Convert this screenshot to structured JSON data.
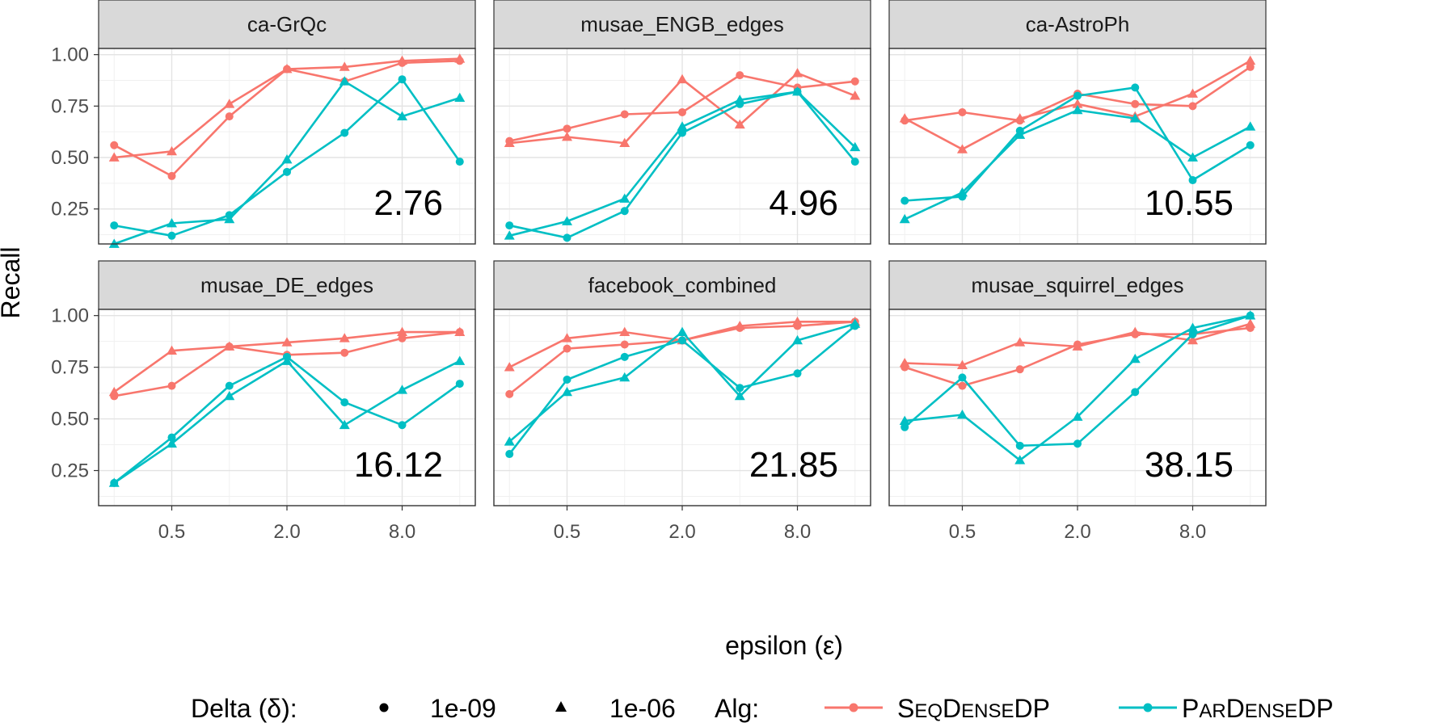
{
  "chart_data": {
    "type": "line",
    "xlabel": "epsilon (ε)",
    "ylabel": "Recall",
    "x": [
      0.25,
      0.5,
      1.0,
      2.0,
      4.0,
      8.0,
      16.0
    ],
    "x_scale": "log2",
    "xticks": [
      0.5,
      2.0,
      8.0
    ],
    "xtick_labels": [
      "0.5",
      "2.0",
      "8.0"
    ],
    "ylim": [
      0.08,
      1.03
    ],
    "yticks": [
      0.25,
      0.5,
      0.75,
      1.0
    ],
    "ytick_labels": [
      "0.25",
      "0.50",
      "0.75",
      "1.00"
    ],
    "grid": true,
    "legend": {
      "position": "bottom",
      "delta_title": "Delta (δ):",
      "delta_items": [
        {
          "label": "1e-09",
          "shape": "circle"
        },
        {
          "label": "1e-06",
          "shape": "triangle"
        }
      ],
      "alg_title": "Alg:",
      "alg_items": [
        {
          "cap1": "S",
          "small1": "EQ",
          "cap2": "D",
          "small2": "ENSE",
          "tail": "DP",
          "color": "#F8766D"
        },
        {
          "cap1": "P",
          "small1": "AR",
          "cap2": "D",
          "small2": "ENSE",
          "tail": "DP",
          "color": "#00BFC4"
        }
      ]
    },
    "colors": {
      "seq": "#F8766D",
      "par": "#00BFC4"
    },
    "panels": [
      {
        "title": "ca-GrQc",
        "annotation": "2.76",
        "series": [
          {
            "alg": "seq",
            "delta": "1e-09",
            "values": [
              0.56,
              0.41,
              0.7,
              0.93,
              0.87,
              0.96,
              0.97
            ]
          },
          {
            "alg": "seq",
            "delta": "1e-06",
            "values": [
              0.5,
              0.53,
              0.76,
              0.93,
              0.94,
              0.97,
              0.98
            ]
          },
          {
            "alg": "par",
            "delta": "1e-09",
            "values": [
              0.17,
              0.12,
              0.22,
              0.43,
              0.62,
              0.88,
              0.48
            ]
          },
          {
            "alg": "par",
            "delta": "1e-06",
            "values": [
              0.08,
              0.18,
              0.2,
              0.49,
              0.87,
              0.7,
              0.79
            ]
          }
        ]
      },
      {
        "title": "musae_ENGB_edges",
        "annotation": "4.96",
        "series": [
          {
            "alg": "seq",
            "delta": "1e-09",
            "values": [
              0.58,
              0.64,
              0.71,
              0.72,
              0.9,
              0.84,
              0.87
            ]
          },
          {
            "alg": "seq",
            "delta": "1e-06",
            "values": [
              0.57,
              0.6,
              0.57,
              0.88,
              0.66,
              0.91,
              0.8
            ]
          },
          {
            "alg": "par",
            "delta": "1e-09",
            "values": [
              0.17,
              0.11,
              0.24,
              0.62,
              0.76,
              0.82,
              0.48
            ]
          },
          {
            "alg": "par",
            "delta": "1e-06",
            "values": [
              0.12,
              0.19,
              0.3,
              0.65,
              0.78,
              0.82,
              0.55
            ]
          }
        ]
      },
      {
        "title": "ca-AstroPh",
        "annotation": "10.55",
        "series": [
          {
            "alg": "seq",
            "delta": "1e-09",
            "values": [
              0.68,
              0.72,
              0.68,
              0.81,
              0.76,
              0.75,
              0.94
            ]
          },
          {
            "alg": "seq",
            "delta": "1e-06",
            "values": [
              0.69,
              0.54,
              0.69,
              0.76,
              0.7,
              0.81,
              0.97
            ]
          },
          {
            "alg": "par",
            "delta": "1e-09",
            "values": [
              0.29,
              0.31,
              0.63,
              0.8,
              0.84,
              0.39,
              0.56
            ]
          },
          {
            "alg": "par",
            "delta": "1e-06",
            "values": [
              0.2,
              0.33,
              0.61,
              0.73,
              0.69,
              0.5,
              0.65
            ]
          }
        ]
      },
      {
        "title": "musae_DE_edges",
        "annotation": "16.12",
        "series": [
          {
            "alg": "seq",
            "delta": "1e-09",
            "values": [
              0.61,
              0.66,
              0.85,
              0.81,
              0.82,
              0.89,
              0.92
            ]
          },
          {
            "alg": "seq",
            "delta": "1e-06",
            "values": [
              0.63,
              0.83,
              0.85,
              0.87,
              0.89,
              0.92,
              0.92
            ]
          },
          {
            "alg": "par",
            "delta": "1e-09",
            "values": [
              0.19,
              0.41,
              0.66,
              0.8,
              0.58,
              0.47,
              0.67
            ]
          },
          {
            "alg": "par",
            "delta": "1e-06",
            "values": [
              0.19,
              0.38,
              0.61,
              0.78,
              0.47,
              0.64,
              0.78
            ]
          }
        ]
      },
      {
        "title": "facebook_combined",
        "annotation": "21.85",
        "series": [
          {
            "alg": "seq",
            "delta": "1e-09",
            "values": [
              0.62,
              0.84,
              0.86,
              0.88,
              0.94,
              0.95,
              0.97
            ]
          },
          {
            "alg": "seq",
            "delta": "1e-06",
            "values": [
              0.75,
              0.89,
              0.92,
              0.88,
              0.95,
              0.97,
              0.97
            ]
          },
          {
            "alg": "par",
            "delta": "1e-09",
            "values": [
              0.33,
              0.69,
              0.8,
              0.88,
              0.65,
              0.72,
              0.95
            ]
          },
          {
            "alg": "par",
            "delta": "1e-06",
            "values": [
              0.39,
              0.63,
              0.7,
              0.92,
              0.61,
              0.88,
              0.96
            ]
          }
        ]
      },
      {
        "title": "musae_squirrel_edges",
        "annotation": "38.15",
        "series": [
          {
            "alg": "seq",
            "delta": "1e-09",
            "values": [
              0.75,
              0.66,
              0.74,
              0.86,
              0.91,
              0.91,
              0.94
            ]
          },
          {
            "alg": "seq",
            "delta": "1e-06",
            "values": [
              0.77,
              0.76,
              0.87,
              0.85,
              0.92,
              0.88,
              0.96
            ]
          },
          {
            "alg": "par",
            "delta": "1e-09",
            "values": [
              0.46,
              0.7,
              0.37,
              0.38,
              0.63,
              0.91,
              1.0
            ]
          },
          {
            "alg": "par",
            "delta": "1e-06",
            "values": [
              0.49,
              0.52,
              0.3,
              0.51,
              0.79,
              0.94,
              1.0
            ]
          }
        ]
      }
    ]
  }
}
